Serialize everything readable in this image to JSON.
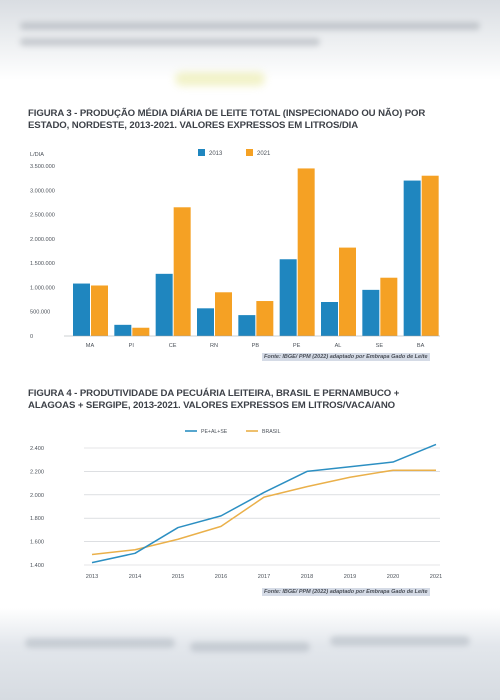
{
  "colors": {
    "series_2013": "#1f86bf",
    "series_2021": "#f5a124",
    "line_pe_al_se": "#2c8fc2",
    "line_brasil": "#eab04a",
    "grid": "#c9ccd0"
  },
  "figure3": {
    "title": "FIGURA 3 - PRODUÇÃO MÉDIA DIÁRIA DE LEITE TOTAL (INSPECIONADO OU NÃO) POR ESTADO, NORDESTE, 2013-2021. VALORES EXPRESSOS EM LITROS/DIA",
    "unit": "L/DIA",
    "source": "Fonte: IBGE/ PPM (2022) adaptado por Embrapa Gado de Leite"
  },
  "figure4": {
    "title": "FIGURA 4 - PRODUTIVIDADE DA PECUÁRIA LEITEIRA, BRASIL E PERNAMBUCO + ALAGOAS + SERGIPE, 2013-2021. VALORES EXPRESSOS EM LITROS/VACA/ANO",
    "source": "Fonte: IBGE/ PPM (2022) adaptado por Embrapa Gado de Leite"
  },
  "chart_data": [
    {
      "type": "bar",
      "title": "FIGURA 3 - PRODUÇÃO MÉDIA DIÁRIA DE LEITE TOTAL (INSPECIONADO OU NÃO) POR ESTADO, NORDESTE, 2013-2021. VALORES EXPRESSOS EM LITROS/DIA",
      "ylabel": "L/DIA",
      "categories": [
        "MA",
        "PI",
        "CE",
        "RN",
        "PB",
        "PE",
        "AL",
        "SE",
        "BA"
      ],
      "series": [
        {
          "name": "2013",
          "values": [
            1080000,
            230000,
            1280000,
            570000,
            430000,
            1580000,
            700000,
            950000,
            3200000
          ]
        },
        {
          "name": "2021",
          "values": [
            1040000,
            170000,
            2650000,
            900000,
            720000,
            3450000,
            1820000,
            1200000,
            3300000
          ]
        }
      ],
      "ylim": [
        0,
        3500000
      ],
      "yticks": [
        0,
        500000,
        1000000,
        1500000,
        2000000,
        2500000,
        3000000,
        3500000
      ],
      "ytick_labels": [
        "0",
        "500.000",
        "1.000.000",
        "1.500.000",
        "2.000.000",
        "2.500.000",
        "3.000.000",
        "3.500.000"
      ],
      "legend": "top-center",
      "grid": false
    },
    {
      "type": "line",
      "title": "FIGURA 4 - PRODUTIVIDADE DA PECUÁRIA LEITEIRA, BRASIL E PERNAMBUCO + ALAGOAS + SERGIPE, 2013-2021. VALORES EXPRESSOS EM LITROS/VACA/ANO",
      "x": [
        "2013",
        "2014",
        "2015",
        "2016",
        "2017",
        "2018",
        "2019",
        "2020",
        "2021"
      ],
      "series": [
        {
          "name": "PE+AL+SE",
          "values": [
            1420,
            1500,
            1720,
            1820,
            2020,
            2200,
            2240,
            2280,
            2430
          ]
        },
        {
          "name": "BRASIL",
          "values": [
            1490,
            1530,
            1620,
            1730,
            1980,
            2070,
            2150,
            2210,
            2210
          ]
        }
      ],
      "ylim": [
        1400,
        2400
      ],
      "yticks": [
        1400,
        1600,
        1800,
        2000,
        2200,
        2400
      ],
      "ytick_labels": [
        "1.400",
        "1.600",
        "1.800",
        "2.000",
        "2.200",
        "2.400"
      ],
      "legend": "top-center",
      "grid": true
    }
  ]
}
